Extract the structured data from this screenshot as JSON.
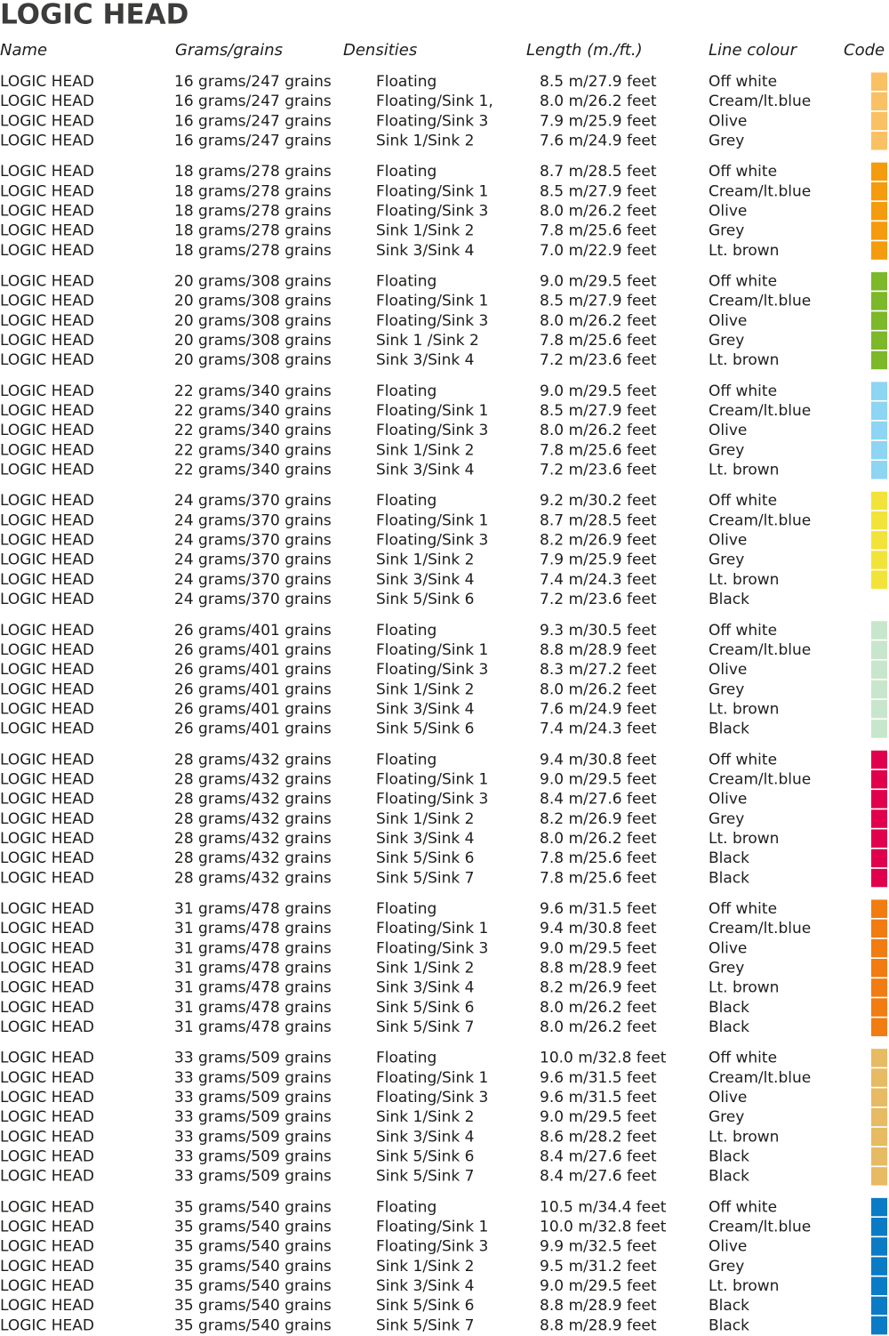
{
  "title": "LOGIC HEAD",
  "columns": [
    "Name",
    "Grams/grains",
    "Densities",
    "Length (m./ft.)",
    "Line colour",
    "Code"
  ],
  "groups": [
    {
      "rows": [
        [
          "LOGIC HEAD",
          "16 grams/247 grains",
          "Floating",
          "8.5 m/27.9 feet",
          "Off white",
          "#f9c164"
        ],
        [
          "LOGIC HEAD",
          "16 grams/247 grains",
          "Floating/Sink 1,",
          "8.0 m/26.2 feet",
          "Cream/lt.blue",
          "#f9c164"
        ],
        [
          "LOGIC HEAD",
          "16 grams/247 grains",
          "Floating/Sink 3",
          "7.9 m/25.9 feet",
          "Olive",
          "#f9c164"
        ],
        [
          "LOGIC HEAD",
          "16 grams/247 grains",
          "Sink 1/Sink 2",
          "7.6 m/24.9 feet",
          "Grey",
          "#f9c164"
        ]
      ]
    },
    {
      "rows": [
        [
          "LOGIC HEAD",
          "18 grams/278 grains",
          "Floating",
          "8.7 m/28.5 feet",
          "Off white",
          "#f49b0f"
        ],
        [
          "LOGIC HEAD",
          "18 grams/278 grains",
          "Floating/Sink 1",
          "8.5 m/27.9 feet",
          "Cream/lt.blue",
          "#f49b0f"
        ],
        [
          "LOGIC HEAD",
          "18 grams/278 grains",
          "Floating/Sink 3",
          "8.0 m/26.2 feet",
          "Olive",
          "#f49b0f"
        ],
        [
          "LOGIC HEAD",
          "18 grams/278 grains",
          "Sink 1/Sink 2",
          "7.8 m/25.6 feet",
          "Grey",
          "#f49b0f"
        ],
        [
          "LOGIC HEAD",
          "18 grams/278 grains",
          "Sink 3/Sink 4",
          "7.0 m/22.9 feet",
          "Lt. brown",
          "#f49b0f"
        ]
      ]
    },
    {
      "rows": [
        [
          "LOGIC HEAD",
          "20 grams/308 grains",
          "Floating",
          "9.0 m/29.5 feet",
          "Off white",
          "#7cb82a"
        ],
        [
          "LOGIC HEAD",
          "20 grams/308 grains",
          "Floating/Sink 1",
          "8.5 m/27.9 feet",
          "Cream/lt.blue",
          "#7cb82a"
        ],
        [
          "LOGIC HEAD",
          "20 grams/308 grains",
          "Floating/Sink 3",
          "8.0 m/26.2 feet",
          "Olive",
          "#7cb82a"
        ],
        [
          "LOGIC HEAD",
          "20 grams/308 grains",
          "Sink 1 /Sink 2",
          "7.8 m/25.6 feet",
          "Grey",
          "#7cb82a"
        ],
        [
          "LOGIC HEAD",
          "20 grams/308 grains",
          "Sink 3/Sink 4",
          "7.2 m/23.6 feet",
          "Lt. brown",
          "#7cb82a"
        ]
      ]
    },
    {
      "rows": [
        [
          "LOGIC HEAD",
          "22 grams/340 grains",
          "Floating",
          "9.0 m/29.5 feet",
          "Off white",
          "#8ed4f3"
        ],
        [
          "LOGIC HEAD",
          "22 grams/340 grains",
          "Floating/Sink 1",
          "8.5 m/27.9 feet",
          "Cream/lt.blue",
          "#8ed4f3"
        ],
        [
          "LOGIC HEAD",
          "22 grams/340 grains",
          "Floating/Sink 3",
          "8.0 m/26.2 feet",
          "Olive",
          "#8ed4f3"
        ],
        [
          "LOGIC HEAD",
          "22 grams/340 grains",
          "Sink 1/Sink 2",
          "7.8 m/25.6 feet",
          "Grey",
          "#8ed4f3"
        ],
        [
          "LOGIC HEAD",
          "22 grams/340 grains",
          "Sink 3/Sink 4",
          "7.2 m/23.6 feet",
          "Lt. brown",
          "#8ed4f3"
        ]
      ]
    },
    {
      "rows": [
        [
          "LOGIC HEAD",
          "24 grams/370 grains",
          "Floating",
          "9.2 m/30.2 feet",
          "Off white",
          "#f2e33a"
        ],
        [
          "LOGIC HEAD",
          "24 grams/370 grains",
          "Floating/Sink 1",
          "8.7 m/28.5 feet",
          "Cream/lt.blue",
          "#f2e33a"
        ],
        [
          "LOGIC HEAD",
          "24 grams/370 grains",
          "Floating/Sink 3",
          "8.2 m/26.9 feet",
          "Olive",
          "#f2e33a"
        ],
        [
          "LOGIC HEAD",
          "24 grams/370 grains",
          "Sink 1/Sink 2",
          "7.9 m/25.9 feet",
          "Grey",
          "#f2e33a"
        ],
        [
          "LOGIC HEAD",
          "24 grams/370 grains",
          "Sink 3/Sink 4",
          "7.4 m/24.3 feet",
          "Lt. brown",
          "#f2e33a"
        ],
        [
          "LOGIC HEAD",
          "24 grams/370 grains",
          "Sink 5/Sink 6",
          "7.2 m/23.6 feet",
          "Black",
          null
        ]
      ]
    },
    {
      "rows": [
        [
          "LOGIC HEAD",
          "26 grams/401 grains",
          "Floating",
          "9.3 m/30.5 feet",
          "Off white",
          "#c8e6cc"
        ],
        [
          "LOGIC HEAD",
          "26 grams/401 grains",
          "Floating/Sink 1",
          "8.8 m/28.9 feet",
          "Cream/lt.blue",
          "#c8e6cc"
        ],
        [
          "LOGIC HEAD",
          "26 grams/401 grains",
          "Floating/Sink 3",
          "8.3 m/27.2 feet",
          "Olive",
          "#c8e6cc"
        ],
        [
          "LOGIC HEAD",
          "26 grams/401 grains",
          "Sink 1/Sink 2",
          "8.0 m/26.2 feet",
          "Grey",
          "#c8e6cc"
        ],
        [
          "LOGIC HEAD",
          "26 grams/401 grains",
          "Sink 3/Sink 4",
          "7.6 m/24.9 feet",
          "Lt. brown",
          "#c8e6cc"
        ],
        [
          "LOGIC HEAD",
          "26 grams/401 grains",
          "Sink 5/Sink 6",
          "7.4 m/24.3 feet",
          "Black",
          "#c8e6cc"
        ]
      ]
    },
    {
      "rows": [
        [
          "LOGIC HEAD",
          "28 grams/432 grains",
          "Floating",
          "9.4 m/30.8 feet",
          "Off white",
          "#e0004d"
        ],
        [
          "LOGIC HEAD",
          "28 grams/432 grains",
          "Floating/Sink 1",
          "9.0 m/29.5 feet",
          "Cream/lt.blue",
          "#e0004d"
        ],
        [
          "LOGIC HEAD",
          "28 grams/432 grains",
          "Floating/Sink 3",
          "8.4 m/27.6 feet",
          "Olive",
          "#e0004d"
        ],
        [
          "LOGIC HEAD",
          "28 grams/432 grains",
          "Sink 1/Sink 2",
          "8.2 m/26.9 feet",
          "Grey",
          "#e0004d"
        ],
        [
          "LOGIC HEAD",
          "28 grams/432 grains",
          "Sink 3/Sink 4",
          "8.0 m/26.2 feet",
          "Lt. brown",
          "#e0004d"
        ],
        [
          "LOGIC HEAD",
          "28 grams/432 grains",
          "Sink 5/Sink 6",
          "7.8 m/25.6 feet",
          "Black",
          "#e0004d"
        ],
        [
          "LOGIC HEAD",
          "28 grams/432 grains",
          "Sink 5/Sink 7",
          "7.8 m/25.6 feet",
          "Black",
          "#e0004d"
        ]
      ]
    },
    {
      "rows": [
        [
          "LOGIC HEAD",
          "31 grams/478 grains",
          "Floating",
          "9.6 m/31.5 feet",
          "Off white",
          "#f07c12"
        ],
        [
          "LOGIC HEAD",
          "31 grams/478 grains",
          "Floating/Sink 1",
          "9.4 m/30.8 feet",
          "Cream/lt.blue",
          "#f07c12"
        ],
        [
          "LOGIC HEAD",
          "31 grams/478 grains",
          "Floating/Sink 3",
          "9.0 m/29.5 feet",
          "Olive",
          "#f07c12"
        ],
        [
          "LOGIC HEAD",
          "31 grams/478 grains",
          "Sink 1/Sink 2",
          "8.8 m/28.9 feet",
          "Grey",
          "#f07c12"
        ],
        [
          "LOGIC HEAD",
          "31 grams/478 grains",
          "Sink 3/Sink 4",
          "8.2 m/26.9 feet",
          "Lt. brown",
          "#f07c12"
        ],
        [
          "LOGIC HEAD",
          "31 grams/478 grains",
          "Sink 5/Sink 6",
          "8.0 m/26.2 feet",
          "Black",
          "#f07c12"
        ],
        [
          "LOGIC HEAD",
          "31 grams/478 grains",
          "Sink 5/Sink 7",
          "8.0 m/26.2 feet",
          "Black",
          "#f07c12"
        ]
      ]
    },
    {
      "rows": [
        [
          "LOGIC HEAD",
          "33 grams/509 grains",
          "Floating",
          "10.0 m/32.8 feet",
          "Off white",
          "#e6bb63"
        ],
        [
          "LOGIC HEAD",
          "33 grams/509 grains",
          "Floating/Sink 1",
          "9.6 m/31.5 feet",
          "Cream/lt.blue",
          "#e6bb63"
        ],
        [
          "LOGIC HEAD",
          "33 grams/509 grains",
          "Floating/Sink 3",
          "9.6 m/31.5 feet",
          "Olive",
          "#e6bb63"
        ],
        [
          "LOGIC HEAD",
          "33 grams/509 grains",
          "Sink 1/Sink 2",
          "9.0 m/29.5 feet",
          "Grey",
          "#e6bb63"
        ],
        [
          "LOGIC HEAD",
          "33 grams/509 grains",
          "Sink 3/Sink 4",
          "8.6 m/28.2 feet",
          "Lt. brown",
          "#e6bb63"
        ],
        [
          "LOGIC HEAD",
          "33 grams/509 grains",
          "Sink 5/Sink 6",
          "8.4 m/27.6 feet",
          "Black",
          "#e6bb63"
        ],
        [
          "LOGIC HEAD",
          "33 grams/509 grains",
          "Sink 5/Sink 7",
          "8.4 m/27.6 feet",
          "Black",
          "#e6bb63"
        ]
      ]
    },
    {
      "rows": [
        [
          "LOGIC HEAD",
          "35 grams/540 grains",
          "Floating",
          "10.5 m/34.4 feet",
          "Off white",
          "#0a7bc4"
        ],
        [
          "LOGIC HEAD",
          "35 grams/540 grains",
          "Floating/Sink 1",
          "10.0 m/32.8 feet",
          "Cream/lt.blue",
          "#0a7bc4"
        ],
        [
          "LOGIC HEAD",
          "35 grams/540 grains",
          "Floating/Sink 3",
          "9.9 m/32.5 feet",
          "Olive",
          "#0a7bc4"
        ],
        [
          "LOGIC HEAD",
          "35 grams/540 grains",
          "Sink 1/Sink 2",
          "9.5 m/31.2 feet",
          "Grey",
          "#0a7bc4"
        ],
        [
          "LOGIC HEAD",
          "35 grams/540 grains",
          "Sink 3/Sink 4",
          "9.0 m/29.5 feet",
          "Lt. brown",
          "#0a7bc4"
        ],
        [
          "LOGIC HEAD",
          "35 grams/540 grains",
          "Sink 5/Sink 6",
          "8.8 m/28.9 feet",
          "Black",
          "#0a7bc4"
        ],
        [
          "LOGIC HEAD",
          "35 grams/540 grains",
          "Sink 5/Sink 7",
          "8.8 m/28.9 feet",
          "Black",
          "#0a7bc4"
        ]
      ]
    }
  ]
}
